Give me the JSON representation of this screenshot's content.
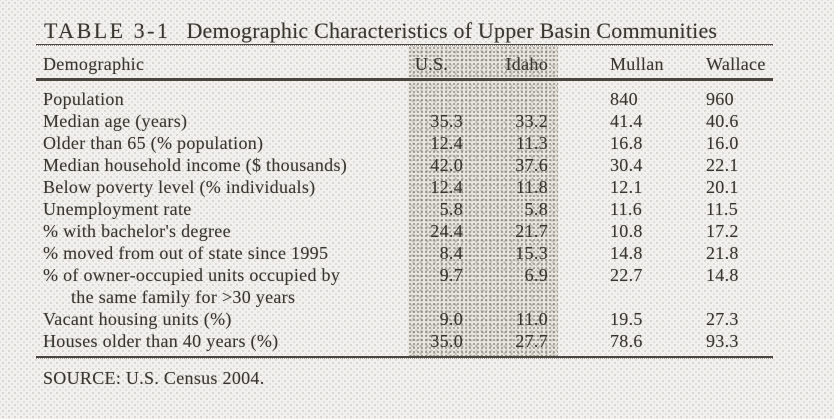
{
  "document": {
    "title_label": "TABLE 3-1",
    "title_text": "Demographic Characteristics of Upper Basin Communities",
    "source": "SOURCE: U.S. Census 2004.",
    "columns": {
      "demographic": "Demographic",
      "us": "U.S.",
      "idaho": "Idaho",
      "mullan": "Mullan",
      "wallace": "Wallace"
    },
    "rows": [
      {
        "label": "Population",
        "us": "",
        "idaho": "",
        "mullan": "840",
        "wallace": "960"
      },
      {
        "label": "Median age (years)",
        "us": "35.3",
        "idaho": "33.2",
        "mullan": "41.4",
        "wallace": "40.6"
      },
      {
        "label": "Older than 65 (% population)",
        "us": "12.4",
        "idaho": "11.3",
        "mullan": "16.8",
        "wallace": "16.0"
      },
      {
        "label": "Median household income ($ thousands)",
        "us": "42.0",
        "idaho": "37.6",
        "mullan": "30.4",
        "wallace": "22.1"
      },
      {
        "label": "Below poverty level (% individuals)",
        "us": "12.4",
        "idaho": "11.8",
        "mullan": "12.1",
        "wallace": "20.1"
      },
      {
        "label": "Unemployment rate",
        "us": "5.8",
        "idaho": "5.8",
        "mullan": "11.6",
        "wallace": "11.5"
      },
      {
        "label": "% with bachelor's degree",
        "us": "24.4",
        "idaho": "21.7",
        "mullan": "10.8",
        "wallace": "17.2"
      },
      {
        "label": "% moved from out of state since 1995",
        "us": "8.4",
        "idaho": "15.3",
        "mullan": "14.8",
        "wallace": "21.8"
      },
      {
        "label": "% of owner-occupied units occupied by",
        "label2": "the same family for >30 years",
        "us": "9.7",
        "idaho": "6.9",
        "mullan": "22.7",
        "wallace": "14.8"
      },
      {
        "label": "Vacant housing units (%)",
        "us": "9.0",
        "idaho": "11.0",
        "mullan": "19.5",
        "wallace": "27.3"
      },
      {
        "label": "Houses older than 40 years (%)",
        "us": "35.0",
        "idaho": "27.7",
        "mullan": "78.6",
        "wallace": "93.3"
      }
    ],
    "colors": {
      "page_bg": "#f2f1ee",
      "band_bg": "#e9e6e0",
      "text": "#39362f",
      "rule": "#4a463f"
    }
  }
}
